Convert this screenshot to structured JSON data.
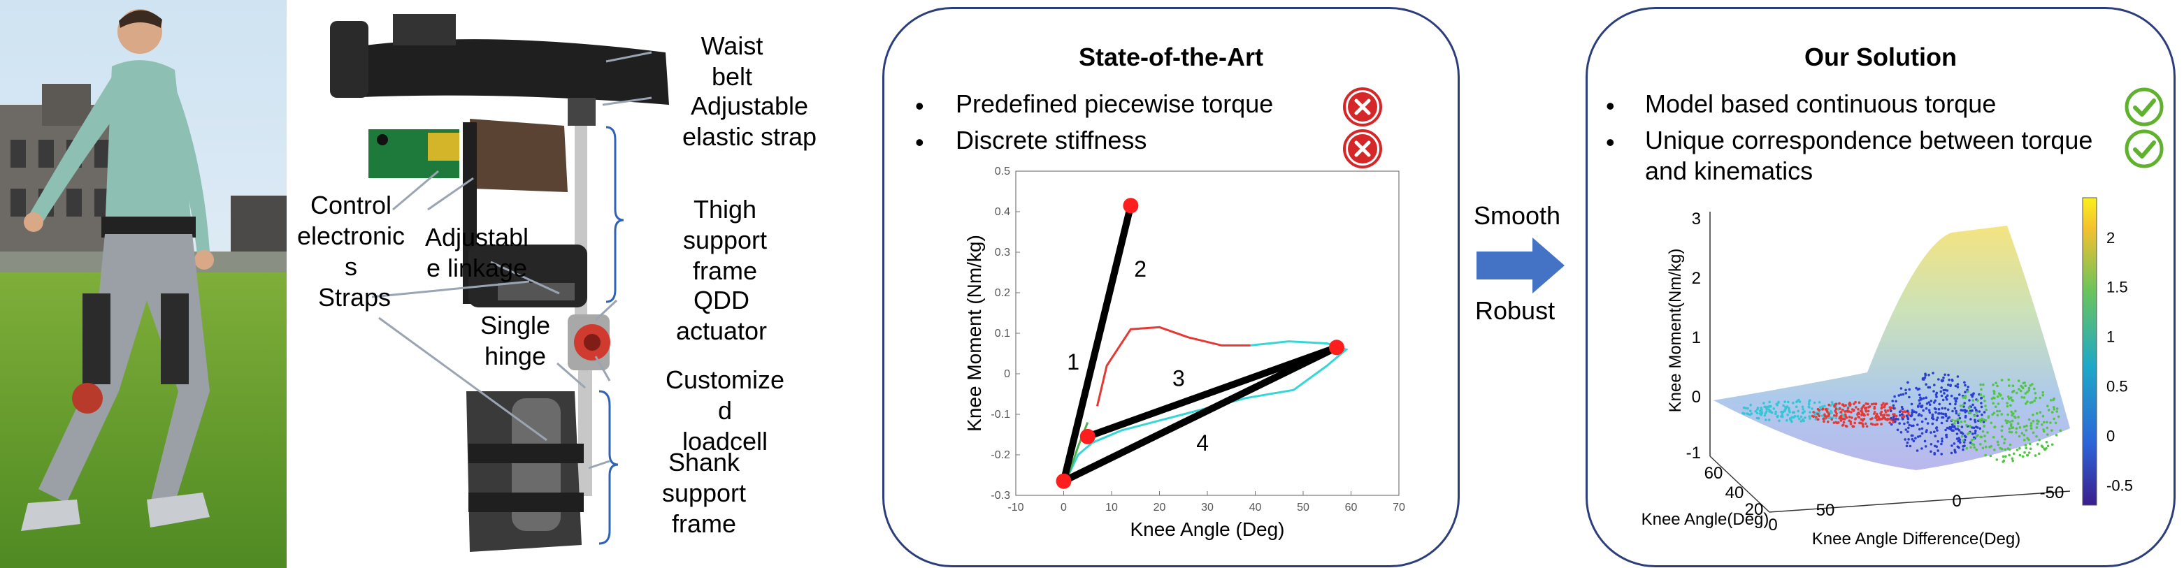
{
  "photo_labels": {},
  "exo_labels": [
    {
      "key": "waist",
      "text": "Waist\nbelt"
    },
    {
      "key": "elastic",
      "text": "Adjustable\nelastic strap"
    },
    {
      "key": "control",
      "text": "Control\nelectronic\ns"
    },
    {
      "key": "linkage",
      "text": "Adjustabl\ne linkage"
    },
    {
      "key": "thigh",
      "text": "Thigh\nsupport\nframe"
    },
    {
      "key": "straps",
      "text": "Straps"
    },
    {
      "key": "qdd",
      "text": "QDD\nactuator"
    },
    {
      "key": "hinge",
      "text": "Single\nhinge"
    },
    {
      "key": "loadcell",
      "text": "Customize\nd\nloadcell"
    },
    {
      "key": "shank",
      "text": "Shank\nsupport\nframe"
    }
  ],
  "sota": {
    "title": "State-of-the-Art",
    "bullets": [
      "Predefined piecewise torque",
      "Discrete stiffness"
    ],
    "bullet_icon": "x-circle-icon",
    "icon_color": "#d62728"
  },
  "middle": {
    "top": "Smooth",
    "bottom": "Robust",
    "arrow_color": "#4472c4"
  },
  "ours": {
    "title": "Our Solution",
    "bullets": [
      "Model based continuous torque",
      "Unique correspondence between torque\nand kinematics"
    ],
    "bullet_icon": "check-circle-icon",
    "icon_color": "#5fb12e"
  },
  "chart_data": [
    {
      "type": "line",
      "xlabel": "Knee Angle (Deg)",
      "ylabel": "Knee Moment (Nm/kg)",
      "xlim": [
        -10,
        70
      ],
      "ylim": [
        -0.3,
        0.5
      ],
      "xticks": [
        "-10",
        "0",
        "10",
        "20",
        "30",
        "40",
        "50",
        "60",
        "70"
      ],
      "yticks": [
        "0.5",
        "0.4",
        "0.3",
        "0.2",
        "0.1",
        "0",
        "-0.1",
        "-0.2",
        "-0.3"
      ],
      "points": [
        {
          "x": 0,
          "y": -0.265
        },
        {
          "x": 14,
          "y": 0.415
        },
        {
          "x": 57,
          "y": 0.065
        },
        {
          "x": 5,
          "y": -0.155
        }
      ],
      "segment_labels": [
        "1",
        "2",
        "3",
        "4"
      ],
      "piecewise_path": [
        [
          0,
          -0.265
        ],
        [
          14,
          0.415
        ],
        [
          0,
          -0.265
        ],
        [
          57,
          0.065
        ],
        [
          5,
          -0.155
        ]
      ],
      "red_curve": [
        [
          7,
          -0.08
        ],
        [
          9,
          0.02
        ],
        [
          14,
          0.11
        ],
        [
          20,
          0.115
        ],
        [
          26,
          0.09
        ],
        [
          33,
          0.07
        ],
        [
          39,
          0.07
        ]
      ],
      "cyan_curve": [
        [
          39,
          0.07
        ],
        [
          47,
          0.08
        ],
        [
          55,
          0.075
        ],
        [
          59,
          0.06
        ],
        [
          55,
          0.02
        ],
        [
          48,
          -0.04
        ],
        [
          38,
          -0.06
        ],
        [
          25,
          -0.1
        ],
        [
          12,
          -0.14
        ],
        [
          6,
          -0.17
        ],
        [
          3,
          -0.2
        ],
        [
          1,
          -0.25
        ]
      ],
      "green_curve": [
        [
          1,
          -0.25
        ],
        [
          3,
          -0.18
        ],
        [
          5,
          -0.12
        ]
      ]
    },
    {
      "type": "surface",
      "xlabel": "Knee Angle Difference(Deg)",
      "ylabel": "Knee Angle(Deg)",
      "zlabel": "Knee Moment(Nm/kg)",
      "xticks": [
        "50",
        "0",
        "-50"
      ],
      "yticks": [
        "60",
        "40",
        "20",
        "0"
      ],
      "zticks": [
        "3",
        "2",
        "1",
        "0",
        "-1"
      ],
      "colorbar_ticks": [
        "2",
        "1.5",
        "1",
        "0.5",
        "0",
        "-0.5"
      ],
      "colorbar_range": [
        -0.7,
        2.4
      ]
    }
  ]
}
